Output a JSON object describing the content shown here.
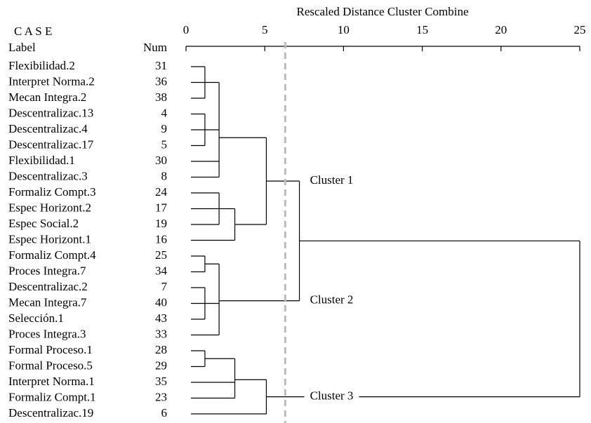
{
  "chart_data": {
    "type": "dendrogram",
    "title": "Rescaled Distance Cluster Combine",
    "case_header": "C A S E",
    "label_header": "Label",
    "num_header": "Num",
    "xlim": [
      0,
      25
    ],
    "xticks": [
      0,
      5,
      10,
      15,
      20,
      25
    ],
    "cut": 6.3,
    "cut_color": "#bbbbbb",
    "tree": {
      "height": 25,
      "children": [
        {
          "height": 7.2,
          "children": [
            {
              "height": 5.1,
              "label": "Cluster 1",
              "children": [
                {
                  "height": 2.1,
                  "children": [
                    {
                      "height": 1.2,
                      "children": [
                        {
                          "label": "Flexibilidad.2",
                          "num": 31
                        },
                        {
                          "label": "Interpret Norma.2",
                          "num": 36
                        },
                        {
                          "label": "Mecan Integra.2",
                          "num": 38
                        }
                      ]
                    },
                    {
                      "height": 1.2,
                      "children": [
                        {
                          "label": "Descentralizac.13",
                          "num": 4
                        },
                        {
                          "label": "Descentralizac.4",
                          "num": 9
                        },
                        {
                          "label": "Descentralizac.17",
                          "num": 5
                        }
                      ]
                    },
                    {
                      "label": "Flexibilidad.1",
                      "num": 30
                    },
                    {
                      "label": "Descentralizac.3",
                      "num": 8
                    }
                  ]
                },
                {
                  "height": 3.1,
                  "children": [
                    {
                      "height": 2.1,
                      "children": [
                        {
                          "label": "Formaliz Compt.3",
                          "num": 24
                        },
                        {
                          "label": "Espec Horizont.2",
                          "num": 17
                        },
                        {
                          "label": "Espec Social.2",
                          "num": 19
                        }
                      ]
                    },
                    {
                      "label": "Espec Horizont.1",
                      "num": 16
                    }
                  ]
                }
              ]
            },
            {
              "height": 2.1,
              "label": "Cluster 2",
              "children": [
                {
                  "height": 1.2,
                  "children": [
                    {
                      "label": "Formaliz Compt.4",
                      "num": 25
                    },
                    {
                      "label": "Proces Integra.7",
                      "num": 34
                    }
                  ]
                },
                {
                  "height": 1.2,
                  "children": [
                    {
                      "label": "Descentralizac.2",
                      "num": 7
                    },
                    {
                      "label": "Mecan Integra.7",
                      "num": 40
                    },
                    {
                      "label": "Selección.1",
                      "num": 43
                    }
                  ]
                },
                {
                  "label": "Proces Integra.3",
                  "num": 33
                }
              ]
            }
          ]
        },
        {
          "height": 5.1,
          "label": "Cluster 3",
          "children": [
            {
              "height": 3.1,
              "children": [
                {
                  "height": 1.2,
                  "children": [
                    {
                      "label": "Formal Proceso.1",
                      "num": 28
                    },
                    {
                      "label": "Formal Proceso.5",
                      "num": 29
                    }
                  ]
                },
                {
                  "label": "Interpret Norma.1",
                  "num": 35
                },
                {
                  "label": "Formaliz Compt.1",
                  "num": 23
                }
              ]
            },
            {
              "label": "Descentralizac.19",
              "num": 6
            }
          ]
        }
      ]
    }
  }
}
